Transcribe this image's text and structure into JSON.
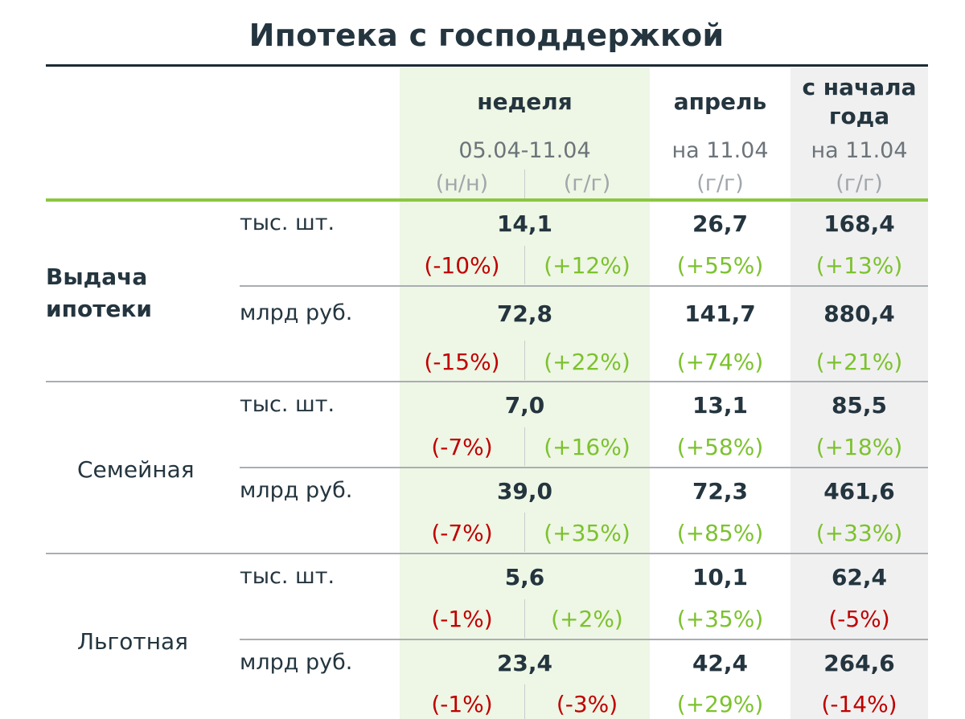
{
  "title": "Ипотека с господдержкой",
  "header": {
    "week": {
      "label": "неделя",
      "period": "05.04-11.04",
      "nn": "(н/н)",
      "gg": "(г/г)"
    },
    "april": {
      "label": "апрель",
      "asof": "на 11.04",
      "gg": "(г/г)"
    },
    "ytd": {
      "label1": "с начала",
      "label2": "года",
      "asof": "на 11.04",
      "gg": "(г/г)"
    }
  },
  "groups": [
    {
      "name_line1": "Выдача",
      "name_line2": "ипотеки",
      "rows": [
        {
          "unit": "тыс. шт.",
          "week": "14,1",
          "week_nn": "(-10%)",
          "week_gg": "(+12%)",
          "april": "26,7",
          "april_gg": "(+55%)",
          "ytd": "168,4",
          "ytd_gg": "(+13%)"
        },
        {
          "unit": "млрд руб.",
          "week": "72,8",
          "week_nn": "(-15%)",
          "week_gg": "(+22%)",
          "april": "141,7",
          "april_gg": "(+74%)",
          "ytd": "880,4",
          "ytd_gg": "(+21%)"
        }
      ]
    },
    {
      "name": "Семейная",
      "rows": [
        {
          "unit": "тыс. шт.",
          "week": "7,0",
          "week_nn": "(-7%)",
          "week_gg": "(+16%)",
          "april": "13,1",
          "april_gg": "(+58%)",
          "ytd": "85,5",
          "ytd_gg": "(+18%)"
        },
        {
          "unit": "млрд руб.",
          "week": "39,0",
          "week_nn": "(-7%)",
          "week_gg": "(+35%)",
          "april": "72,3",
          "april_gg": "(+85%)",
          "ytd": "461,6",
          "ytd_gg": "(+33%)"
        }
      ]
    },
    {
      "name": "Льготная",
      "rows": [
        {
          "unit": "тыс. шт.",
          "week": "5,6",
          "week_nn": "(-1%)",
          "week_gg": "(+2%)",
          "april": "10,1",
          "april_gg": "(+35%)",
          "ytd": "62,4",
          "ytd_gg": "(-5%)"
        },
        {
          "unit": "млрд руб.",
          "week": "23,4",
          "week_nn": "(-1%)",
          "week_gg": "(-3%)",
          "april": "42,4",
          "april_gg": "(+29%)",
          "ytd": "264,6",
          "ytd_gg": "(-14%)"
        }
      ]
    }
  ],
  "colors": {
    "negative": "#c00000",
    "positive": "#7cc22e",
    "accent": "#8cc63f",
    "week_bg": "#eef6e5",
    "ytd_bg": "#f0f0f0"
  }
}
